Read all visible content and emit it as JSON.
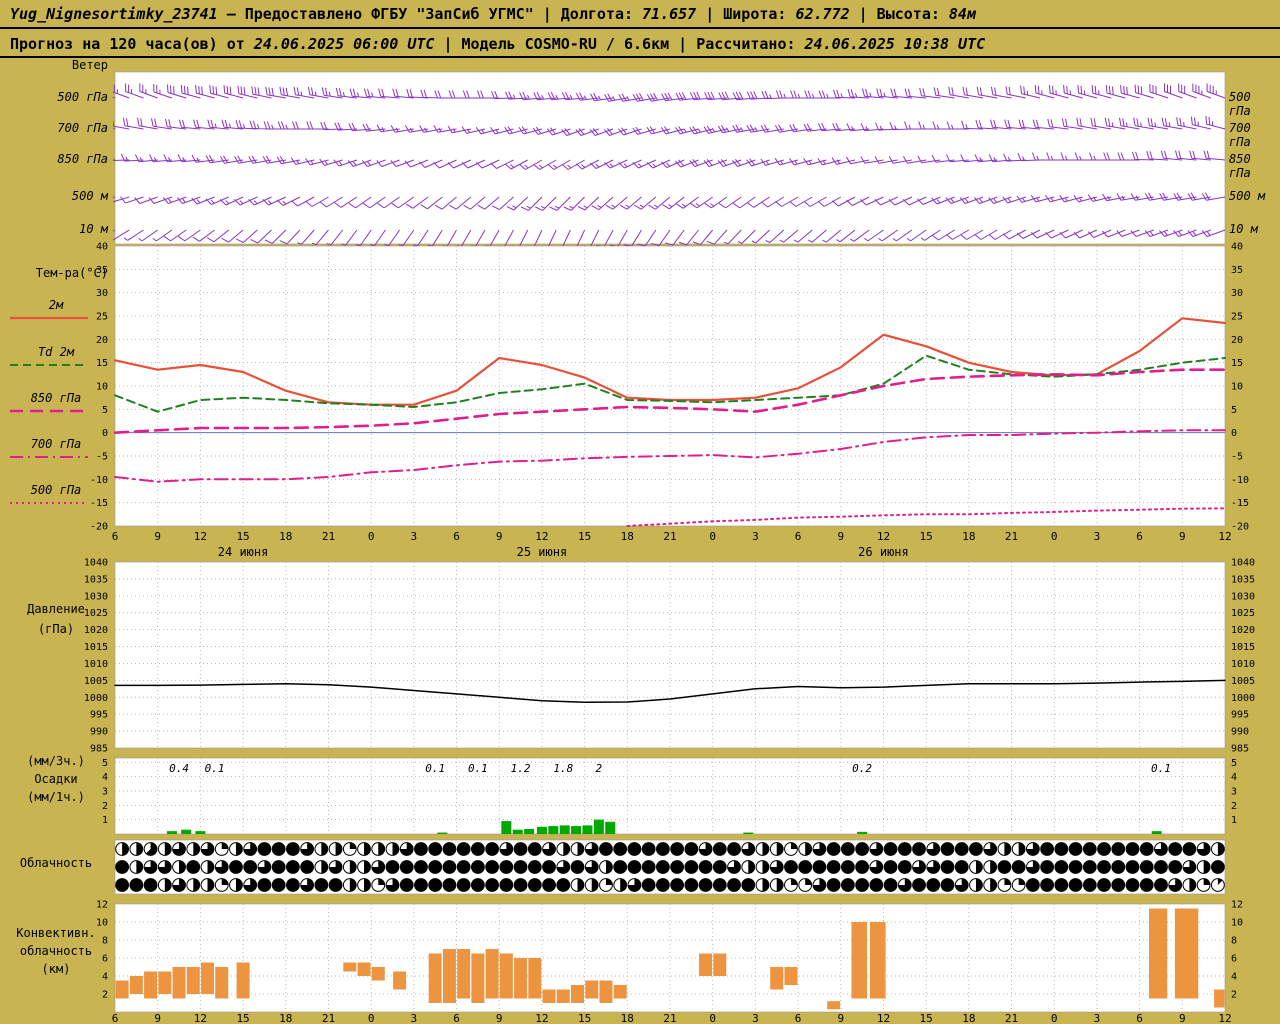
{
  "header": {
    "station": "Yug_Nignesortimky_23741",
    "dash": "—",
    "provided": "Предоставлено ФГБУ \"ЗапСиб УГМС\"",
    "sep": "|",
    "lon_label": "Долгота:",
    "lon": "71.657",
    "lat_label": "Широта:",
    "lat": "62.772",
    "alt_label": "Высота:",
    "alt": "84м",
    "forecast_prefix": "Прогноз на 120 часа(ов) от",
    "run_time": "24.06.2025 06:00 UTC",
    "model_label": "Модель",
    "model": "COSMO-RU / 6.6км",
    "calc_label": "Рассчитано:",
    "calc_time": "24.06.2025 10:38 UTC"
  },
  "panels": {
    "wind_label": "Ветер",
    "temp_label": "Тем-ра(°C)",
    "pressure_label_1": "Давление",
    "pressure_label_2": "(гПа)",
    "precip_label_1": "(мм/3ч.)",
    "precip_label_2": "Осадки",
    "precip_label_3": "(мм/1ч.)",
    "cloud_label": "Облачность",
    "conv_label_1": "Конвективн.",
    "conv_label_2": "облачность",
    "conv_label_3": "(км)"
  },
  "x_axis": {
    "total_hours": 78,
    "tick_step_hours": 3,
    "labels": [
      "6",
      "9",
      "12",
      "15",
      "18",
      "21",
      "0",
      "3",
      "6",
      "9",
      "12",
      "15",
      "18",
      "21",
      "0",
      "3",
      "6",
      "9",
      "12",
      "15",
      "18",
      "21",
      "0",
      "3",
      "6",
      "9",
      "12"
    ],
    "dates": [
      {
        "text": "24 июня",
        "h": 9
      },
      {
        "text": "25 июня",
        "h": 30
      },
      {
        "text": "26 июня",
        "h": 54
      }
    ]
  },
  "chart_data": [
    {
      "type": "wind-barbs",
      "panel": "wind",
      "color": "#8a33c2",
      "unit": "kt",
      "levels": [
        "500 гПа",
        "700 гПа",
        "850 гПа",
        "500 м",
        "10 м"
      ],
      "series": [
        {
          "level": "500 гПа",
          "dir": [
            290,
            290,
            285,
            285,
            280,
            280,
            275,
            275,
            270,
            270,
            265,
            265,
            260,
            260,
            265,
            265,
            270,
            270,
            275,
            275,
            280,
            280,
            285,
            285,
            285,
            290,
            290
          ],
          "speed": [
            25,
            25,
            30,
            30,
            30,
            25,
            25,
            20,
            20,
            20,
            25,
            25,
            25,
            30,
            30,
            30,
            25,
            25,
            25,
            20,
            20,
            20,
            25,
            25,
            30,
            30,
            35
          ]
        },
        {
          "level": "700 гПа",
          "dir": [
            280,
            280,
            275,
            275,
            270,
            270,
            265,
            260,
            260,
            255,
            255,
            250,
            250,
            255,
            255,
            260,
            260,
            265,
            265,
            270,
            270,
            275,
            275,
            280,
            280,
            280,
            285
          ],
          "speed": [
            20,
            20,
            20,
            25,
            25,
            20,
            20,
            15,
            15,
            15,
            20,
            20,
            20,
            20,
            25,
            25,
            20,
            20,
            15,
            15,
            15,
            20,
            20,
            20,
            25,
            25,
            25
          ]
        },
        {
          "level": "850 гПа",
          "dir": [
            270,
            265,
            265,
            260,
            260,
            255,
            250,
            250,
            245,
            245,
            240,
            240,
            245,
            245,
            250,
            250,
            255,
            255,
            260,
            260,
            265,
            265,
            270,
            270,
            270,
            275,
            275
          ],
          "speed": [
            15,
            15,
            15,
            20,
            20,
            15,
            15,
            10,
            10,
            10,
            15,
            15,
            15,
            15,
            20,
            20,
            15,
            15,
            10,
            10,
            10,
            15,
            15,
            15,
            20,
            20,
            20
          ]
        },
        {
          "level": "500 м",
          "dir": [
            255,
            250,
            250,
            245,
            245,
            240,
            235,
            235,
            230,
            230,
            225,
            225,
            230,
            230,
            235,
            235,
            240,
            240,
            245,
            245,
            250,
            250,
            255,
            255,
            260,
            260,
            260
          ],
          "speed": [
            10,
            10,
            15,
            15,
            15,
            10,
            10,
            10,
            10,
            10,
            15,
            15,
            15,
            15,
            15,
            10,
            10,
            10,
            10,
            10,
            15,
            15,
            15,
            15,
            15,
            20,
            20
          ]
        },
        {
          "level": "10 м",
          "dir": [
            240,
            235,
            235,
            230,
            225,
            220,
            215,
            215,
            210,
            210,
            205,
            205,
            210,
            215,
            220,
            225,
            230,
            230,
            235,
            235,
            240,
            240,
            245,
            245,
            250,
            250,
            250
          ],
          "speed": [
            5,
            5,
            10,
            10,
            10,
            5,
            5,
            5,
            5,
            5,
            10,
            10,
            10,
            10,
            10,
            5,
            5,
            5,
            5,
            5,
            10,
            10,
            10,
            10,
            10,
            15,
            15
          ]
        }
      ]
    },
    {
      "type": "line",
      "panel": "temperature",
      "title": "Тем-ра(°C)",
      "ylim": [
        -20,
        40
      ],
      "yticks": [
        40,
        35,
        30,
        25,
        20,
        15,
        10,
        5,
        0,
        -5,
        -10,
        -15,
        -20
      ],
      "x_step_hours": 3,
      "series": [
        {
          "name": "2м",
          "color": "#e8503a",
          "style": "solid",
          "width": 2.2,
          "values": [
            15.5,
            13.5,
            14.5,
            13,
            9,
            6.5,
            6,
            6,
            9,
            16,
            14.5,
            11.8,
            7.5,
            7,
            7,
            7.5,
            9.5,
            14,
            21,
            18.5,
            15,
            13,
            12.3,
            12.5,
            17.5,
            24.5,
            23.5
          ]
        },
        {
          "name": "Td 2м",
          "color": "#208020",
          "style": "dashed",
          "width": 2,
          "values": [
            8,
            4.5,
            7,
            7.5,
            7,
            6.3,
            6,
            5.5,
            6.5,
            8.5,
            9.3,
            10.5,
            7,
            6.8,
            6.5,
            7,
            7.5,
            8,
            10.5,
            16.5,
            13.5,
            12.5,
            12,
            12.5,
            13.5,
            15,
            16
          ]
        },
        {
          "name": "850 гПа",
          "color": "#e01f8f",
          "style": "longdash",
          "width": 2.6,
          "values": [
            0,
            0.5,
            1,
            1,
            1,
            1.2,
            1.5,
            2,
            3,
            4,
            4.5,
            5,
            5.5,
            5.3,
            5,
            4.5,
            6,
            8,
            10,
            11.5,
            12,
            12.3,
            12.5,
            12.3,
            13,
            13.5,
            13.5
          ]
        },
        {
          "name": "700 гПа",
          "color": "#e01f8f",
          "style": "dashdot",
          "width": 2,
          "values": [
            -9.5,
            -10.5,
            -10,
            -10,
            -10,
            -9.5,
            -8.5,
            -8,
            -7,
            -6.2,
            -6,
            -5.5,
            -5.2,
            -5,
            -4.8,
            -5.3,
            -4.5,
            -3.5,
            -2,
            -1,
            -0.5,
            -0.5,
            -0.2,
            0,
            0.3,
            0.5,
            0.5
          ]
        },
        {
          "name": "500 гПа",
          "color": "#e01f8f",
          "style": "dotted",
          "width": 2,
          "values": [
            null,
            null,
            null,
            null,
            null,
            null,
            null,
            null,
            null,
            null,
            null,
            null,
            -20,
            -19.5,
            -19,
            -18.7,
            -18.2,
            -18,
            -17.7,
            -17.5,
            -17.5,
            -17.2,
            -17,
            -16.7,
            -16.5,
            -16.3,
            -16.2
          ]
        }
      ]
    },
    {
      "type": "line",
      "panel": "pressure",
      "ylim": [
        985,
        1040
      ],
      "yticks": [
        1040,
        1035,
        1030,
        1025,
        1020,
        1015,
        1010,
        1005,
        1000,
        995,
        990,
        985
      ],
      "series": [
        {
          "name": "Давление",
          "color": "#000000",
          "style": "solid",
          "width": 1.5,
          "values": [
            1003.5,
            1003.5,
            1003.6,
            1003.8,
            1004,
            1003.7,
            1003,
            1002,
            1001,
            1000,
            999,
            998.5,
            998.6,
            999.5,
            1001,
            1002.5,
            1003.2,
            1002.8,
            1003,
            1003.5,
            1004,
            1004,
            1004,
            1004.2,
            1004.5,
            1004.7,
            1005
          ]
        }
      ]
    },
    {
      "type": "bar",
      "panel": "precipitation",
      "color": "#00a800",
      "ylim": [
        0,
        5.3
      ],
      "yticks": [
        5,
        4,
        3,
        2,
        1
      ],
      "bars": [
        {
          "h": 4,
          "v": 0.2
        },
        {
          "h": 5,
          "v": 0.3
        },
        {
          "h": 6,
          "v": 0.2
        },
        {
          "h": 23,
          "v": 0.1
        },
        {
          "h": 27.5,
          "v": 0.9
        },
        {
          "h": 28.3,
          "v": 0.3
        },
        {
          "h": 29.1,
          "v": 0.35
        },
        {
          "h": 30,
          "v": 0.5
        },
        {
          "h": 30.8,
          "v": 0.55
        },
        {
          "h": 31.6,
          "v": 0.6
        },
        {
          "h": 32.4,
          "v": 0.55
        },
        {
          "h": 33.2,
          "v": 0.6
        },
        {
          "h": 34,
          "v": 1.0
        },
        {
          "h": 34.8,
          "v": 0.85
        },
        {
          "h": 44.5,
          "v": 0.1
        },
        {
          "h": 52.5,
          "v": 0.15
        },
        {
          "h": 73.2,
          "v": 0.2
        }
      ],
      "labels": [
        {
          "h": 4.5,
          "text": "0.4"
        },
        {
          "h": 7,
          "text": "0.1"
        },
        {
          "h": 22.5,
          "text": "0.1"
        },
        {
          "h": 25.5,
          "text": "0.1"
        },
        {
          "h": 28.5,
          "text": "1.2"
        },
        {
          "h": 31.5,
          "text": "1.8"
        },
        {
          "h": 34,
          "text": "2"
        },
        {
          "h": 52.5,
          "text": "0.2"
        },
        {
          "h": 73.5,
          "text": "0.1"
        }
      ]
    },
    {
      "type": "cloud",
      "panel": "cloudiness",
      "okta_max": 8,
      "rows": [
        "445464624688864424446888888688644688888886886442468886888688864468888888868864",
        "846648468868884644688888888888868648888888864468888886886688448868888888888648",
        "888464424688868844268888888888884424688888888442268888868886442288888888886421"
      ]
    },
    {
      "type": "bar-range",
      "panel": "convective",
      "color": "#ec9440",
      "ylim": [
        0,
        12
      ],
      "yticks": [
        12,
        10,
        8,
        6,
        4,
        2
      ],
      "bars": [
        {
          "h": 0.5,
          "b": 1.5,
          "t": 3.5
        },
        {
          "h": 1.5,
          "b": 2,
          "t": 4
        },
        {
          "h": 2.5,
          "b": 1.5,
          "t": 4.5
        },
        {
          "h": 3.5,
          "b": 2,
          "t": 4.5
        },
        {
          "h": 4.5,
          "b": 1.5,
          "t": 5
        },
        {
          "h": 5.5,
          "b": 2,
          "t": 5
        },
        {
          "h": 6.5,
          "b": 2,
          "t": 5.5
        },
        {
          "h": 7.5,
          "b": 1.5,
          "t": 5
        },
        {
          "h": 9,
          "b": 1.5,
          "t": 5.5
        },
        {
          "h": 16.5,
          "b": 4.5,
          "t": 5.5
        },
        {
          "h": 17.5,
          "b": 4,
          "t": 5.5
        },
        {
          "h": 18.5,
          "b": 3.5,
          "t": 5
        },
        {
          "h": 20,
          "b": 2.5,
          "t": 4.5
        },
        {
          "h": 22.5,
          "b": 1,
          "t": 6.5
        },
        {
          "h": 23.5,
          "b": 1,
          "t": 7
        },
        {
          "h": 24.5,
          "b": 1.5,
          "t": 7
        },
        {
          "h": 25.5,
          "b": 1,
          "t": 6.5
        },
        {
          "h": 26.5,
          "b": 1.5,
          "t": 7
        },
        {
          "h": 27.5,
          "b": 1.5,
          "t": 6.5
        },
        {
          "h": 28.5,
          "b": 1.5,
          "t": 6
        },
        {
          "h": 29.5,
          "b": 1.5,
          "t": 6
        },
        {
          "h": 30.5,
          "b": 1,
          "t": 2.5
        },
        {
          "h": 31.5,
          "b": 1,
          "t": 2.5
        },
        {
          "h": 32.5,
          "b": 1,
          "t": 3
        },
        {
          "h": 33.5,
          "b": 1.5,
          "t": 3.5
        },
        {
          "h": 34.5,
          "b": 1,
          "t": 3.5
        },
        {
          "h": 35.5,
          "b": 1.5,
          "t": 3
        },
        {
          "h": 41.5,
          "b": 4,
          "t": 6.5
        },
        {
          "h": 42.5,
          "b": 4,
          "t": 6.5
        },
        {
          "h": 46.5,
          "b": 2.5,
          "t": 5
        },
        {
          "h": 47.5,
          "b": 3,
          "t": 5
        },
        {
          "h": 50.5,
          "b": 0.3,
          "t": 1.2
        },
        {
          "h": 52.3,
          "b": 1.5,
          "t": 10,
          "w": 1.2
        },
        {
          "h": 53.6,
          "b": 1.5,
          "t": 10,
          "w": 1.2
        },
        {
          "h": 73.3,
          "b": 1.5,
          "t": 11.5,
          "w": 1.4
        },
        {
          "h": 75.3,
          "b": 1.5,
          "t": 11.5,
          "w": 1.8
        },
        {
          "h": 77.6,
          "b": 0.5,
          "t": 2.5,
          "w": 0.8
        }
      ]
    }
  ]
}
